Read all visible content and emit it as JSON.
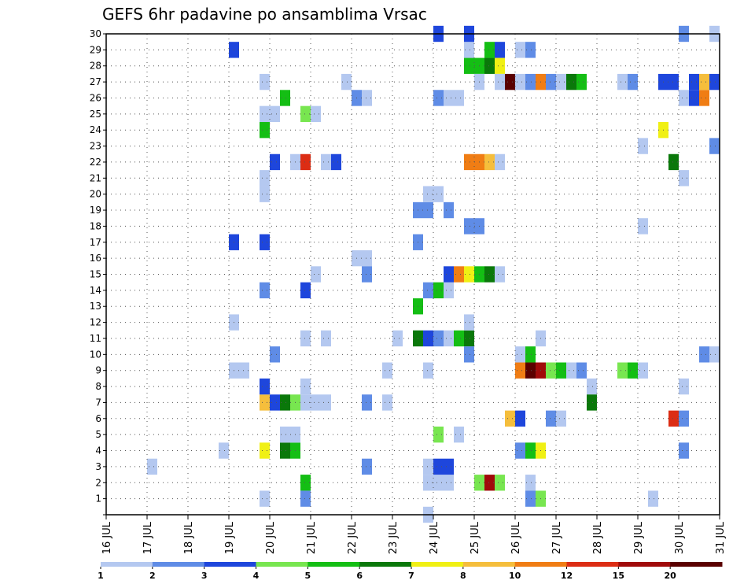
{
  "chart_data": {
    "type": "heatmap",
    "title": "GEFS 6hr padavine po ansamblima Vrsac",
    "xlabel": "",
    "ylabel": "",
    "x_range": [
      "2016-07-16T00",
      "2016-07-31T00"
    ],
    "x_tick_labels": [
      "16 JUL",
      "17 JUL",
      "18 JUL",
      "19 JUL",
      "20 JUL",
      "21 JUL",
      "22 JUL",
      "23 JUL",
      "24 JUL",
      "25 JUL",
      "26 JUL",
      "27 JUL",
      "28 JUL",
      "29 JUL",
      "30 JUL",
      "31 JUL"
    ],
    "y_tick_labels": [
      "1",
      "2",
      "3",
      "4",
      "5",
      "6",
      "7",
      "8",
      "9",
      "10",
      "11",
      "12",
      "13",
      "14",
      "15",
      "16",
      "17",
      "18",
      "19",
      "20",
      "21",
      "22",
      "23",
      "24",
      "25",
      "26",
      "27",
      "28",
      "29",
      "30"
    ],
    "y_range": [
      0,
      30
    ],
    "grid": true,
    "legend_position": "bottom",
    "legend": {
      "labels": [
        "1",
        "2",
        "3",
        "4",
        "5",
        "6",
        "7",
        "8",
        "10",
        "12",
        "15",
        "20"
      ],
      "colors": [
        "#b4c8f0",
        "#5f8ce6",
        "#1e46dc",
        "#78e650",
        "#14be14",
        "#0a780a",
        "#f0f014",
        "#f5be3c",
        "#f07d14",
        "#dc2d14",
        "#a00a0a",
        "#5a0000"
      ]
    },
    "colors": {
      "1": "#b4c8f0",
      "2": "#5f8ce6",
      "3": "#1e46dc",
      "4": "#78e650",
      "5": "#14be14",
      "6": "#0a780a",
      "7": "#f0f014",
      "8": "#f5be3c",
      "10": "#f07d14",
      "12": "#dc2d14",
      "15": "#a00a0a",
      "20": "#5a0000"
    },
    "cells": [
      {
        "t": "2016-07-17T00",
        "m": 3,
        "v": 1
      },
      {
        "t": "2016-07-19T00",
        "m": 9,
        "v": 1
      },
      {
        "t": "2016-07-19T06",
        "m": 9,
        "v": 1
      },
      {
        "t": "2016-07-19T00",
        "m": 12,
        "v": 1
      },
      {
        "t": "2016-07-19T00",
        "m": 17,
        "v": 3
      },
      {
        "t": "2016-07-19T18",
        "m": 17,
        "v": 3
      },
      {
        "t": "2016-07-19T00",
        "m": 29,
        "v": 3
      },
      {
        "t": "2016-07-18T18",
        "m": 4,
        "v": 1
      },
      {
        "t": "2016-07-19T18",
        "m": 1,
        "v": 1
      },
      {
        "t": "2016-07-19T18",
        "m": 4,
        "v": 7
      },
      {
        "t": "2016-07-20T06",
        "m": 4,
        "v": 6
      },
      {
        "t": "2016-07-20T12",
        "m": 4,
        "v": 5
      },
      {
        "t": "2016-07-20T06",
        "m": 5,
        "v": 1
      },
      {
        "t": "2016-07-20T12",
        "m": 5,
        "v": 1
      },
      {
        "t": "2016-07-20T00",
        "m": 10,
        "v": 2
      },
      {
        "t": "2016-07-19T18",
        "m": 7,
        "v": 8
      },
      {
        "t": "2016-07-20T00",
        "m": 7,
        "v": 3
      },
      {
        "t": "2016-07-20T06",
        "m": 7,
        "v": 6
      },
      {
        "t": "2016-07-20T12",
        "m": 7,
        "v": 4
      },
      {
        "t": "2016-07-20T18",
        "m": 7,
        "v": 1
      },
      {
        "t": "2016-07-21T00",
        "m": 7,
        "v": 1
      },
      {
        "t": "2016-07-21T06",
        "m": 7,
        "v": 1
      },
      {
        "t": "2016-07-19T18",
        "m": 8,
        "v": 3
      },
      {
        "t": "2016-07-20T18",
        "m": 8,
        "v": 1
      },
      {
        "t": "2016-07-19T18",
        "m": 14,
        "v": 2
      },
      {
        "t": "2016-07-19T18",
        "m": 20,
        "v": 1
      },
      {
        "t": "2016-07-19T18",
        "m": 21,
        "v": 1
      },
      {
        "t": "2016-07-20T00",
        "m": 22,
        "v": 3
      },
      {
        "t": "2016-07-20T12",
        "m": 22,
        "v": 1
      },
      {
        "t": "2016-07-20T18",
        "m": 22,
        "v": 12
      },
      {
        "t": "2016-07-21T06",
        "m": 22,
        "v": 1
      },
      {
        "t": "2016-07-21T12",
        "m": 22,
        "v": 3
      },
      {
        "t": "2016-07-19T18",
        "m": 24,
        "v": 5
      },
      {
        "t": "2016-07-19T18",
        "m": 25,
        "v": 1
      },
      {
        "t": "2016-07-20T00",
        "m": 25,
        "v": 1
      },
      {
        "t": "2016-07-20T18",
        "m": 25,
        "v": 4
      },
      {
        "t": "2016-07-21T00",
        "m": 25,
        "v": 1
      },
      {
        "t": "2016-07-20T06",
        "m": 26,
        "v": 5
      },
      {
        "t": "2016-07-19T18",
        "m": 27,
        "v": 1
      },
      {
        "t": "2016-07-20T18",
        "m": 2,
        "v": 5
      },
      {
        "t": "2016-07-20T18",
        "m": 1,
        "v": 2
      },
      {
        "t": "2016-07-20T18",
        "m": 11,
        "v": 1
      },
      {
        "t": "2016-07-21T06",
        "m": 11,
        "v": 1
      },
      {
        "t": "2016-07-20T18",
        "m": 14,
        "v": 3
      },
      {
        "t": "2016-07-21T00",
        "m": 15,
        "v": 1
      },
      {
        "t": "2016-07-21T18",
        "m": 27,
        "v": 1
      },
      {
        "t": "2016-07-22T00",
        "m": 26,
        "v": 2
      },
      {
        "t": "2016-07-22T06",
        "m": 26,
        "v": 1
      },
      {
        "t": "2016-07-22T00",
        "m": 16,
        "v": 1
      },
      {
        "t": "2016-07-22T06",
        "m": 16,
        "v": 1
      },
      {
        "t": "2016-07-22T06",
        "m": 15,
        "v": 2
      },
      {
        "t": "2016-07-22T06",
        "m": 3,
        "v": 2
      },
      {
        "t": "2016-07-22T06",
        "m": 7,
        "v": 2
      },
      {
        "t": "2016-07-22T18",
        "m": 7,
        "v": 1
      },
      {
        "t": "2016-07-22T18",
        "m": 9,
        "v": 1
      },
      {
        "t": "2016-07-23T00",
        "m": 11,
        "v": 1
      },
      {
        "t": "2016-07-23T12",
        "m": 11,
        "v": 6
      },
      {
        "t": "2016-07-23T18",
        "m": 11,
        "v": 3
      },
      {
        "t": "2016-07-24T00",
        "m": 11,
        "v": 2
      },
      {
        "t": "2016-07-24T06",
        "m": 11,
        "v": 1
      },
      {
        "t": "2016-07-24T12",
        "m": 11,
        "v": 5
      },
      {
        "t": "2016-07-24T18",
        "m": 11,
        "v": 6
      },
      {
        "t": "2016-07-23T12",
        "m": 13,
        "v": 5
      },
      {
        "t": "2016-07-23T18",
        "m": 14,
        "v": 2
      },
      {
        "t": "2016-07-23T12",
        "m": 17,
        "v": 2
      },
      {
        "t": "2016-07-23T12",
        "m": 19,
        "v": 2
      },
      {
        "t": "2016-07-23T18",
        "m": 19,
        "v": 2
      },
      {
        "t": "2016-07-23T18",
        "m": 20,
        "v": 1
      },
      {
        "t": "2016-07-24T00",
        "m": 20,
        "v": 1
      },
      {
        "t": "2016-07-23T18",
        "m": 9,
        "v": 1
      },
      {
        "t": "2016-07-23T18",
        "m": 3,
        "v": 1
      },
      {
        "t": "2016-07-23T18",
        "m": 2,
        "v": 1
      },
      {
        "t": "2016-07-24T00",
        "m": 2,
        "v": 1
      },
      {
        "t": "2016-07-24T06",
        "m": 2,
        "v": 1
      },
      {
        "t": "2016-07-24T00",
        "m": 3,
        "v": 3
      },
      {
        "t": "2016-07-24T06",
        "m": 3,
        "v": 3
      },
      {
        "t": "2016-07-23T18",
        "m": 0,
        "v": 1
      },
      {
        "t": "2016-07-24T00",
        "m": 5,
        "v": 4
      },
      {
        "t": "2016-07-24T12",
        "m": 5,
        "v": 1
      },
      {
        "t": "2016-07-24T00",
        "m": 14,
        "v": 5
      },
      {
        "t": "2016-07-24T06",
        "m": 14,
        "v": 1
      },
      {
        "t": "2016-07-24T06",
        "m": 15,
        "v": 3
      },
      {
        "t": "2016-07-24T12",
        "m": 15,
        "v": 10
      },
      {
        "t": "2016-07-24T18",
        "m": 15,
        "v": 7
      },
      {
        "t": "2016-07-25T00",
        "m": 15,
        "v": 5
      },
      {
        "t": "2016-07-25T06",
        "m": 15,
        "v": 6
      },
      {
        "t": "2016-07-25T12",
        "m": 15,
        "v": 1
      },
      {
        "t": "2016-07-24T06",
        "m": 19,
        "v": 2
      },
      {
        "t": "2016-07-24T18",
        "m": 18,
        "v": 2
      },
      {
        "t": "2016-07-25T00",
        "m": 18,
        "v": 2
      },
      {
        "t": "2016-07-24T18",
        "m": 10,
        "v": 2
      },
      {
        "t": "2016-07-24T18",
        "m": 12,
        "v": 1
      },
      {
        "t": "2016-07-24T00",
        "m": 26,
        "v": 2
      },
      {
        "t": "2016-07-24T06",
        "m": 26,
        "v": 1
      },
      {
        "t": "2016-07-24T12",
        "m": 26,
        "v": 1
      },
      {
        "t": "2016-07-24T00",
        "m": 30,
        "v": 3
      },
      {
        "t": "2016-07-24T18",
        "m": 22,
        "v": 10
      },
      {
        "t": "2016-07-25T00",
        "m": 22,
        "v": 10
      },
      {
        "t": "2016-07-25T06",
        "m": 22,
        "v": 8
      },
      {
        "t": "2016-07-25T12",
        "m": 22,
        "v": 1
      },
      {
        "t": "2016-07-24T18",
        "m": 28,
        "v": 5
      },
      {
        "t": "2016-07-25T00",
        "m": 28,
        "v": 5
      },
      {
        "t": "2016-07-25T06",
        "m": 28,
        "v": 6
      },
      {
        "t": "2016-07-25T12",
        "m": 28,
        "v": 7
      },
      {
        "t": "2016-07-24T18",
        "m": 29,
        "v": 1
      },
      {
        "t": "2016-07-25T06",
        "m": 29,
        "v": 5
      },
      {
        "t": "2016-07-25T12",
        "m": 29,
        "v": 3
      },
      {
        "t": "2016-07-24T18",
        "m": 30,
        "v": 3
      },
      {
        "t": "2016-07-25T00",
        "m": 27,
        "v": 1
      },
      {
        "t": "2016-07-25T12",
        "m": 27,
        "v": 1
      },
      {
        "t": "2016-07-25T18",
        "m": 27,
        "v": 20
      },
      {
        "t": "2016-07-26T00",
        "m": 27,
        "v": 1
      },
      {
        "t": "2016-07-26T06",
        "m": 27,
        "v": 2
      },
      {
        "t": "2016-07-26T12",
        "m": 27,
        "v": 10
      },
      {
        "t": "2016-07-26T18",
        "m": 27,
        "v": 2
      },
      {
        "t": "2016-07-27T00",
        "m": 27,
        "v": 1
      },
      {
        "t": "2016-07-27T06",
        "m": 27,
        "v": 6
      },
      {
        "t": "2016-07-27T12",
        "m": 27,
        "v": 5
      },
      {
        "t": "2016-07-25T00",
        "m": 2,
        "v": 4
      },
      {
        "t": "2016-07-25T06",
        "m": 2,
        "v": 15
      },
      {
        "t": "2016-07-25T12",
        "m": 2,
        "v": 4
      },
      {
        "t": "2016-07-25T18",
        "m": 6,
        "v": 8
      },
      {
        "t": "2016-07-26T00",
        "m": 6,
        "v": 3
      },
      {
        "t": "2016-07-26T00",
        "m": 4,
        "v": 2
      },
      {
        "t": "2016-07-26T06",
        "m": 4,
        "v": 5
      },
      {
        "t": "2016-07-26T12",
        "m": 4,
        "v": 7
      },
      {
        "t": "2016-07-26T00",
        "m": 9,
        "v": 10
      },
      {
        "t": "2016-07-26T06",
        "m": 9,
        "v": 20
      },
      {
        "t": "2016-07-26T12",
        "m": 9,
        "v": 15
      },
      {
        "t": "2016-07-26T18",
        "m": 9,
        "v": 4
      },
      {
        "t": "2016-07-27T00",
        "m": 9,
        "v": 5
      },
      {
        "t": "2016-07-27T06",
        "m": 9,
        "v": 1
      },
      {
        "t": "2016-07-27T12",
        "m": 9,
        "v": 2
      },
      {
        "t": "2016-07-26T00",
        "m": 10,
        "v": 1
      },
      {
        "t": "2016-07-26T06",
        "m": 10,
        "v": 5
      },
      {
        "t": "2016-07-26T06",
        "m": 2,
        "v": 1
      },
      {
        "t": "2016-07-26T06",
        "m": 1,
        "v": 2
      },
      {
        "t": "2016-07-26T12",
        "m": 1,
        "v": 4
      },
      {
        "t": "2016-07-26T06",
        "m": 29,
        "v": 2
      },
      {
        "t": "2016-07-26T00",
        "m": 29,
        "v": 1
      },
      {
        "t": "2016-07-26T18",
        "m": 6,
        "v": 2
      },
      {
        "t": "2016-07-27T00",
        "m": 6,
        "v": 1
      },
      {
        "t": "2016-07-26T12",
        "m": 11,
        "v": 1
      },
      {
        "t": "2016-07-27T18",
        "m": 8,
        "v": 1
      },
      {
        "t": "2016-07-27T18",
        "m": 7,
        "v": 6
      },
      {
        "t": "2016-07-28T12",
        "m": 9,
        "v": 4
      },
      {
        "t": "2016-07-28T18",
        "m": 9,
        "v": 5
      },
      {
        "t": "2016-07-29T00",
        "m": 9,
        "v": 1
      },
      {
        "t": "2016-07-28T12",
        "m": 27,
        "v": 1
      },
      {
        "t": "2016-07-28T18",
        "m": 27,
        "v": 2
      },
      {
        "t": "2016-07-29T00",
        "m": 18,
        "v": 1
      },
      {
        "t": "2016-07-29T00",
        "m": 23,
        "v": 1
      },
      {
        "t": "2016-07-29T06",
        "m": 1,
        "v": 1
      },
      {
        "t": "2016-07-29T12",
        "m": 27,
        "v": 3
      },
      {
        "t": "2016-07-29T18",
        "m": 27,
        "v": 3
      },
      {
        "t": "2016-07-29T12",
        "m": 24,
        "v": 7
      },
      {
        "t": "2016-07-29T18",
        "m": 22,
        "v": 6
      },
      {
        "t": "2016-07-30T00",
        "m": 8,
        "v": 1
      },
      {
        "t": "2016-07-29T18",
        "m": 6,
        "v": 12
      },
      {
        "t": "2016-07-30T00",
        "m": 6,
        "v": 2
      },
      {
        "t": "2016-07-30T00",
        "m": 4,
        "v": 2
      },
      {
        "t": "2016-07-30T00",
        "m": 21,
        "v": 1
      },
      {
        "t": "2016-07-30T00",
        "m": 26,
        "v": 1
      },
      {
        "t": "2016-07-30T06",
        "m": 26,
        "v": 3
      },
      {
        "t": "2016-07-30T12",
        "m": 26,
        "v": 10
      },
      {
        "t": "2016-07-30T06",
        "m": 27,
        "v": 3
      },
      {
        "t": "2016-07-30T12",
        "m": 27,
        "v": 8
      },
      {
        "t": "2016-07-30T18",
        "m": 27,
        "v": 3
      },
      {
        "t": "2016-07-30T00",
        "m": 30,
        "v": 2
      },
      {
        "t": "2016-07-30T12",
        "m": 10,
        "v": 2
      },
      {
        "t": "2016-07-30T18",
        "m": 10,
        "v": 1
      },
      {
        "t": "2016-07-30T18",
        "m": 23,
        "v": 2
      },
      {
        "t": "2016-07-30T18",
        "m": 30,
        "v": 1
      }
    ]
  }
}
